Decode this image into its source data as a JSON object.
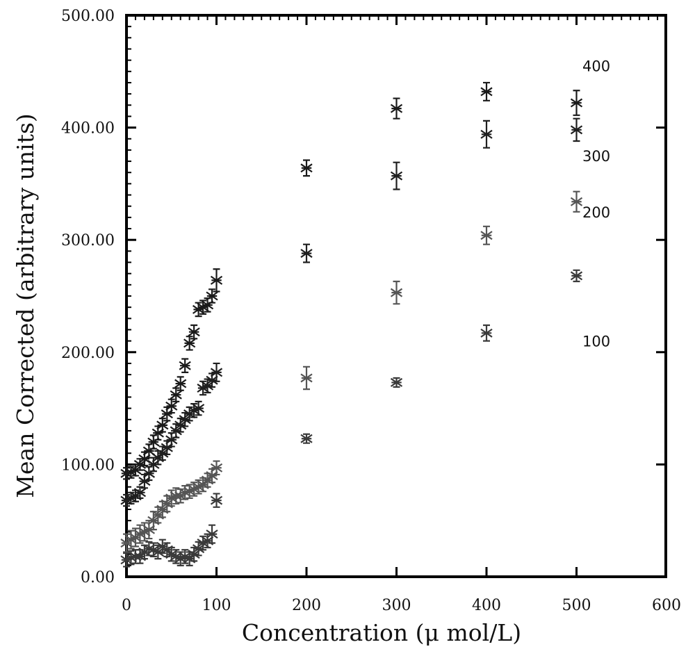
{
  "chart_data": {
    "type": "scatter",
    "xlabel": "Concentration (μ mol/L)",
    "ylabel": "Mean Corrected (arbitrary units)",
    "xlim": [
      0,
      600
    ],
    "ylim": [
      0,
      500
    ],
    "x_ticks": [
      "0",
      "100",
      "200",
      "300",
      "400",
      "500",
      "600"
    ],
    "y_ticks": [
      "0.00",
      "100.00",
      "200.00",
      "300.00",
      "400.00",
      "500.00"
    ],
    "grid": false,
    "marker": "asterisk with vertical error bars",
    "series": [
      {
        "name": "400",
        "label_position": [
          495,
          455
        ],
        "x": [
          0,
          5,
          10,
          15,
          20,
          25,
          30,
          35,
          40,
          45,
          50,
          55,
          60,
          65,
          70,
          75,
          80,
          85,
          90,
          95,
          100,
          200,
          300,
          400,
          500
        ],
        "y": [
          92,
          93,
          95,
          100,
          105,
          112,
          120,
          128,
          135,
          145,
          152,
          162,
          172,
          188,
          208,
          218,
          238,
          240,
          242,
          250,
          264,
          364,
          417,
          432,
          422
        ],
        "err": [
          5,
          5,
          5,
          5,
          6,
          6,
          6,
          6,
          6,
          6,
          6,
          6,
          6,
          6,
          6,
          6,
          6,
          6,
          6,
          6,
          10,
          7,
          9,
          8,
          11
        ]
      },
      {
        "name": "300",
        "label_position": [
          495,
          375
        ],
        "x": [
          0,
          5,
          10,
          15,
          20,
          25,
          30,
          35,
          40,
          45,
          50,
          55,
          60,
          65,
          70,
          75,
          80,
          85,
          90,
          95,
          100,
          200,
          300,
          400,
          500
        ],
        "y": [
          68,
          70,
          72,
          75,
          85,
          92,
          100,
          106,
          110,
          115,
          122,
          130,
          135,
          140,
          145,
          148,
          150,
          168,
          170,
          175,
          182,
          288,
          357,
          394,
          398
        ],
        "err": [
          5,
          5,
          5,
          5,
          6,
          6,
          6,
          6,
          6,
          6,
          6,
          6,
          6,
          6,
          6,
          6,
          6,
          6,
          6,
          6,
          8,
          8,
          12,
          12,
          10
        ]
      },
      {
        "name": "200",
        "label_position": [
          495,
          325
        ],
        "x": [
          0,
          5,
          10,
          15,
          20,
          25,
          30,
          35,
          40,
          45,
          50,
          55,
          60,
          65,
          70,
          75,
          80,
          85,
          90,
          95,
          100,
          200,
          300,
          400,
          500
        ],
        "y": [
          30,
          33,
          35,
          38,
          40,
          42,
          50,
          55,
          60,
          65,
          70,
          72,
          72,
          75,
          76,
          78,
          80,
          82,
          86,
          90,
          97,
          177,
          253,
          304,
          334
        ],
        "err": [
          8,
          8,
          8,
          8,
          8,
          8,
          8,
          7,
          7,
          7,
          7,
          7,
          6,
          6,
          6,
          6,
          6,
          6,
          6,
          6,
          6,
          10,
          10,
          8,
          9
        ]
      },
      {
        "name": "100",
        "label_position": [
          495,
          210
        ],
        "x": [
          0,
          5,
          10,
          15,
          20,
          25,
          30,
          35,
          40,
          45,
          50,
          55,
          60,
          65,
          70,
          75,
          80,
          85,
          90,
          95,
          100,
          200,
          300,
          400,
          500
        ],
        "y": [
          15,
          17,
          18,
          18,
          22,
          25,
          24,
          22,
          27,
          24,
          20,
          18,
          16,
          18,
          16,
          20,
          25,
          30,
          32,
          38,
          68,
          123,
          173,
          217,
          268
        ],
        "err": [
          6,
          6,
          6,
          6,
          6,
          6,
          6,
          6,
          6,
          6,
          6,
          6,
          6,
          6,
          6,
          6,
          6,
          6,
          6,
          8,
          6,
          4,
          4,
          7,
          5
        ]
      }
    ]
  }
}
